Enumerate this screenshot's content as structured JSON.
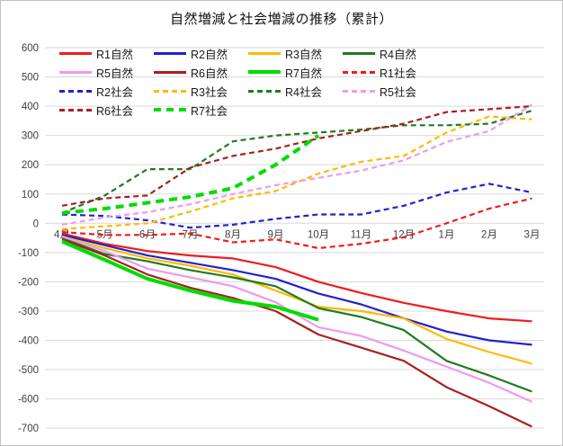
{
  "title": "自然増減と社会増減の推移（累計）",
  "chart_data": {
    "type": "line",
    "title": "自然増減と社会増減の推移（累計）",
    "categories": [
      "4月",
      "5月",
      "6月",
      "7月",
      "8月",
      "9月",
      "10月",
      "11月",
      "12月",
      "1月",
      "2月",
      "3月"
    ],
    "xlabel": "",
    "ylabel": "",
    "ylim": [
      -700,
      600
    ],
    "y_ticks": [
      600,
      500,
      400,
      300,
      200,
      100,
      0,
      -100,
      -200,
      -300,
      -400,
      -500,
      -600,
      -700
    ],
    "grid": true,
    "legend_position": "top",
    "gridline_color": "#d9d9d9",
    "tick_color": "#404040",
    "series": [
      {
        "name": "R1自然",
        "color": "#EE1C1C",
        "style": "solid",
        "thick": false,
        "values": [
          -35,
          -70,
          -95,
          -110,
          -120,
          -150,
          -200,
          -238,
          -272,
          -300,
          -325,
          -335
        ]
      },
      {
        "name": "R2自然",
        "color": "#2222CC",
        "style": "solid",
        "thick": false,
        "values": [
          -40,
          -75,
          -110,
          -135,
          -160,
          -190,
          -240,
          -277,
          -325,
          -370,
          -400,
          -415
        ]
      },
      {
        "name": "R3自然",
        "color": "#FFB900",
        "style": "solid",
        "thick": false,
        "values": [
          -45,
          -85,
          -120,
          -145,
          -175,
          -230,
          -285,
          -300,
          -325,
          -395,
          -440,
          -480
        ]
      },
      {
        "name": "R4自然",
        "color": "#1F7A1F",
        "style": "solid",
        "thick": false,
        "values": [
          -50,
          -105,
          -130,
          -160,
          -185,
          -215,
          -290,
          -320,
          -365,
          -470,
          -520,
          -575
        ]
      },
      {
        "name": "R5自然",
        "color": "#EE9AEE",
        "style": "solid",
        "thick": false,
        "values": [
          -45,
          -95,
          -155,
          -185,
          -215,
          -270,
          -355,
          -385,
          -435,
          -490,
          -545,
          -610
        ]
      },
      {
        "name": "R6自然",
        "color": "#A82020",
        "style": "solid",
        "thick": false,
        "values": [
          -55,
          -110,
          -175,
          -220,
          -255,
          -300,
          -380,
          -425,
          -470,
          -560,
          -625,
          -695
        ]
      },
      {
        "name": "R7自然",
        "color": "#00DC00",
        "style": "solid",
        "thick": true,
        "values": [
          -62,
          -125,
          -190,
          -230,
          -265,
          -285,
          -330
        ]
      },
      {
        "name": "R1社会",
        "color": "#EE1C1C",
        "style": "dashed",
        "thick": false,
        "values": [
          -30,
          -40,
          -40,
          -35,
          -65,
          -55,
          -85,
          -70,
          -48,
          0,
          50,
          85
        ]
      },
      {
        "name": "R2社会",
        "color": "#2222CC",
        "style": "dashed",
        "thick": false,
        "values": [
          30,
          25,
          10,
          -15,
          -5,
          15,
          30,
          30,
          60,
          105,
          135,
          105
        ]
      },
      {
        "name": "R3社会",
        "color": "#FFB900",
        "style": "dashed",
        "thick": false,
        "values": [
          -20,
          -10,
          0,
          40,
          85,
          110,
          170,
          210,
          230,
          310,
          365,
          355
        ]
      },
      {
        "name": "R4社会",
        "color": "#1F7A1F",
        "style": "dashed",
        "thick": false,
        "values": [
          35,
          95,
          185,
          185,
          280,
          300,
          310,
          320,
          335,
          335,
          340,
          385
        ]
      },
      {
        "name": "R5社会",
        "color": "#EE9AEE",
        "style": "dashed",
        "thick": false,
        "values": [
          -5,
          20,
          38,
          65,
          100,
          130,
          155,
          180,
          215,
          278,
          315,
          405
        ]
      },
      {
        "name": "R6社会",
        "color": "#A82020",
        "style": "dashed",
        "thick": false,
        "values": [
          60,
          85,
          95,
          190,
          230,
          255,
          290,
          315,
          340,
          380,
          390,
          400
        ]
      },
      {
        "name": "R7社会",
        "color": "#00DC00",
        "style": "dashed",
        "thick": true,
        "values": [
          35,
          50,
          70,
          90,
          120,
          200,
          300
        ]
      }
    ]
  }
}
